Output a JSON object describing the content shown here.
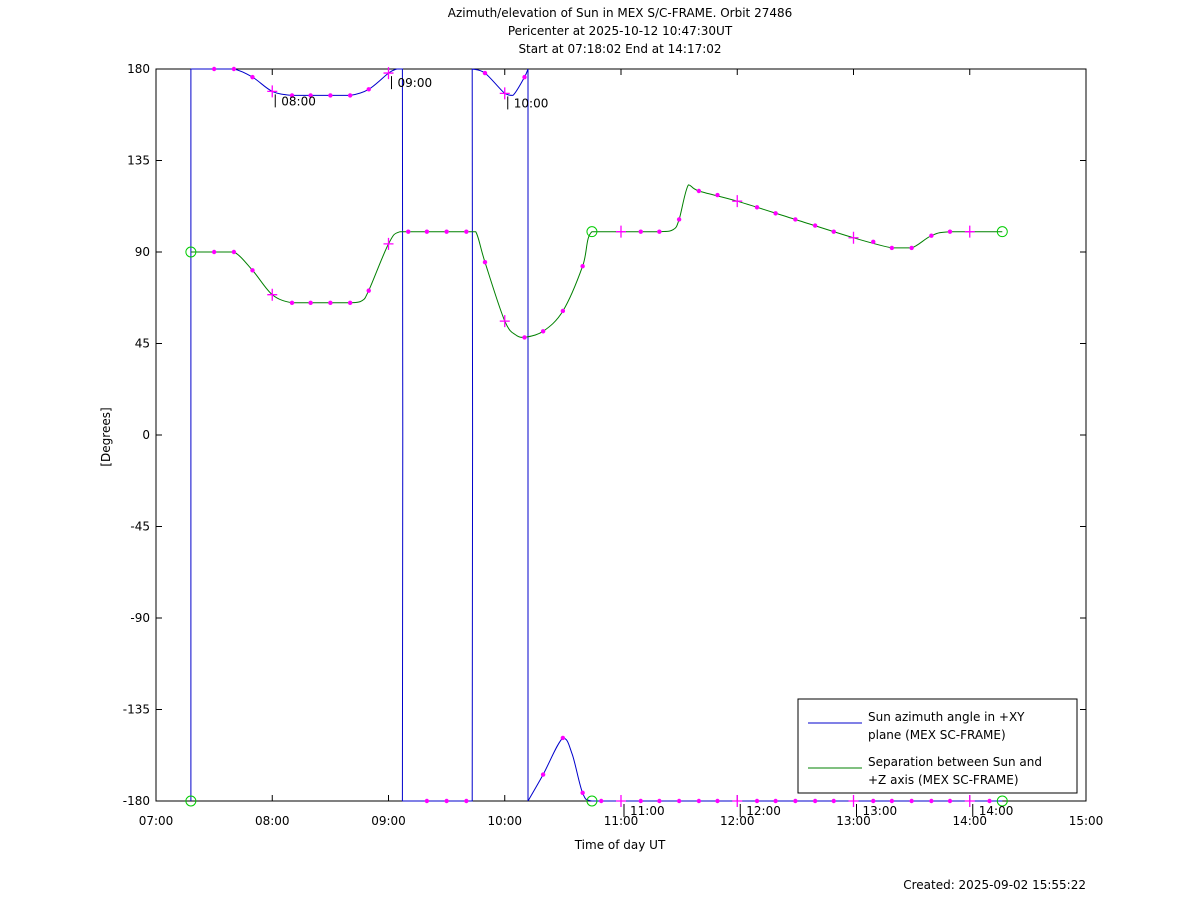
{
  "chart_data": {
    "type": "line",
    "title_lines": [
      "Azimuth/elevation of Sun in MEX S/C-FRAME.  Orbit 27486",
      "Pericenter at 2025-10-12 10:47:30UT",
      "Start at 07:18:02 End at 14:17:02"
    ],
    "xlabel": "Time of day UT",
    "ylabel": "[Degrees]",
    "x_unit": "hours UT",
    "xlim": [
      7,
      15
    ],
    "ylim": [
      -180,
      180
    ],
    "x_ticks": [
      {
        "v": 7,
        "label": "07:00"
      },
      {
        "v": 8,
        "label": "08:00"
      },
      {
        "v": 9,
        "label": "09:00"
      },
      {
        "v": 10,
        "label": "10:00"
      },
      {
        "v": 11,
        "label": "11:00"
      },
      {
        "v": 12,
        "label": "12:00"
      },
      {
        "v": 13,
        "label": "13:00"
      },
      {
        "v": 14,
        "label": "14:00"
      },
      {
        "v": 15,
        "label": "15:00"
      }
    ],
    "y_ticks": [
      {
        "v": 180,
        "label": "180"
      },
      {
        "v": 135,
        "label": "135"
      },
      {
        "v": 90,
        "label": "90"
      },
      {
        "v": 45,
        "label": "45"
      },
      {
        "v": 0,
        "label": "0"
      },
      {
        "v": -45,
        "label": "-45"
      },
      {
        "v": -90,
        "label": "-90"
      },
      {
        "v": -135,
        "label": "-135"
      },
      {
        "v": -180,
        "label": "-180"
      }
    ],
    "hour_annotations": [
      {
        "x": 8.0,
        "y": 169,
        "label": "08:00"
      },
      {
        "x": 9.0,
        "y": 178,
        "label": "09:00"
      },
      {
        "x": 10.0,
        "y": 168,
        "label": "10:00"
      },
      {
        "x": 11.0,
        "y": -180,
        "label": "11:00"
      },
      {
        "x": 12.0,
        "y": -180,
        "label": "12:00"
      },
      {
        "x": 13.0,
        "y": -180,
        "label": "13:00"
      },
      {
        "x": 14.0,
        "y": -180,
        "label": "14:00"
      }
    ],
    "series": [
      {
        "name": "Sun azimuth angle in +XY plane (MEX SC-FRAME)",
        "color": "#0000cc",
        "segments": [
          [
            [
              7.3,
              -180
            ],
            [
              7.3,
              180
            ]
          ],
          [
            [
              7.3,
              180
            ],
            [
              7.5,
              180
            ],
            [
              7.67,
              180
            ],
            [
              7.83,
              176
            ],
            [
              8.0,
              169
            ],
            [
              8.17,
              167
            ],
            [
              8.33,
              167
            ],
            [
              8.5,
              167
            ],
            [
              8.67,
              167
            ],
            [
              8.83,
              170
            ],
            [
              9.0,
              178
            ],
            [
              9.07,
              180
            ]
          ],
          [
            [
              9.07,
              180
            ],
            [
              9.12,
              180
            ],
            [
              9.12,
              -180
            ]
          ],
          [
            [
              9.12,
              -180
            ],
            [
              9.33,
              -180
            ],
            [
              9.5,
              -180
            ],
            [
              9.67,
              -180
            ],
            [
              9.72,
              -180
            ],
            [
              9.72,
              180
            ]
          ],
          [
            [
              9.72,
              180
            ],
            [
              9.83,
              178
            ],
            [
              10.0,
              168
            ],
            [
              10.07,
              167
            ],
            [
              10.17,
              176
            ],
            [
              10.2,
              180
            ]
          ],
          [
            [
              10.2,
              180
            ],
            [
              10.2,
              -180
            ]
          ],
          [
            [
              10.2,
              -180
            ],
            [
              10.33,
              -167
            ],
            [
              10.5,
              -149
            ],
            [
              10.58,
              -157
            ],
            [
              10.67,
              -176
            ],
            [
              10.75,
              -180
            ],
            [
              11.0,
              -180
            ],
            [
              12.0,
              -180
            ],
            [
              13.0,
              -180
            ],
            [
              14.0,
              -180
            ],
            [
              14.28,
              -180
            ]
          ]
        ],
        "markers_dot": [
          [
            7.5,
            180
          ],
          [
            7.67,
            180
          ],
          [
            7.83,
            176
          ],
          [
            8.17,
            167
          ],
          [
            8.33,
            167
          ],
          [
            8.5,
            167
          ],
          [
            8.67,
            167
          ],
          [
            8.83,
            170
          ],
          [
            9.33,
            -180
          ],
          [
            9.5,
            -180
          ],
          [
            9.67,
            -180
          ],
          [
            9.83,
            178
          ],
          [
            10.17,
            176
          ],
          [
            10.33,
            -167
          ],
          [
            10.5,
            -149
          ],
          [
            10.67,
            -176
          ],
          [
            10.83,
            -180
          ],
          [
            11.17,
            -180
          ],
          [
            11.33,
            -180
          ],
          [
            11.5,
            -180
          ],
          [
            11.67,
            -180
          ],
          [
            11.83,
            -180
          ],
          [
            12.17,
            -180
          ],
          [
            12.33,
            -180
          ],
          [
            12.5,
            -180
          ],
          [
            12.67,
            -180
          ],
          [
            12.83,
            -180
          ],
          [
            13.17,
            -180
          ],
          [
            13.33,
            -180
          ],
          [
            13.5,
            -180
          ],
          [
            13.67,
            -180
          ],
          [
            13.83,
            -180
          ],
          [
            14.17,
            -180
          ]
        ],
        "markers_plus": [
          [
            8.0,
            169
          ],
          [
            9.0,
            178
          ],
          [
            10.0,
            168
          ],
          [
            11.0,
            -180
          ],
          [
            12.0,
            -180
          ],
          [
            13.0,
            -180
          ],
          [
            14.0,
            -180
          ]
        ]
      },
      {
        "name": "Separation between Sun and +Z axis (MEX SC-FRAME)",
        "color": "#008000",
        "segments": [
          [
            [
              7.3,
              90
            ],
            [
              7.5,
              90
            ],
            [
              7.67,
              90
            ],
            [
              7.83,
              81
            ],
            [
              8.0,
              69
            ],
            [
              8.17,
              65
            ],
            [
              8.33,
              65
            ],
            [
              8.5,
              65
            ],
            [
              8.67,
              65
            ],
            [
              8.77,
              66
            ],
            [
              8.83,
              71
            ],
            [
              9.0,
              94
            ],
            [
              9.1,
              100
            ],
            [
              9.33,
              100
            ],
            [
              9.5,
              100
            ],
            [
              9.67,
              100
            ],
            [
              9.75,
              100
            ],
            [
              9.83,
              85
            ],
            [
              10.0,
              56
            ],
            [
              10.1,
              49
            ],
            [
              10.17,
              48
            ],
            [
              10.33,
              51
            ],
            [
              10.5,
              61
            ],
            [
              10.67,
              83
            ],
            [
              10.75,
              100
            ],
            [
              11.0,
              100
            ],
            [
              11.33,
              100
            ],
            [
              11.45,
              101
            ],
            [
              11.5,
              106
            ],
            [
              11.58,
              123
            ],
            [
              11.67,
              120
            ],
            [
              12.0,
              115
            ],
            [
              12.5,
              106
            ],
            [
              13.0,
              97
            ],
            [
              13.33,
              92
            ],
            [
              13.5,
              92
            ],
            [
              13.67,
              98
            ],
            [
              13.83,
              100
            ],
            [
              14.28,
              100
            ]
          ]
        ],
        "markers_dot": [
          [
            7.5,
            90
          ],
          [
            7.67,
            90
          ],
          [
            7.83,
            81
          ],
          [
            8.17,
            65
          ],
          [
            8.33,
            65
          ],
          [
            8.5,
            65
          ],
          [
            8.67,
            65
          ],
          [
            8.83,
            71
          ],
          [
            9.17,
            100
          ],
          [
            9.33,
            100
          ],
          [
            9.5,
            100
          ],
          [
            9.67,
            100
          ],
          [
            9.83,
            85
          ],
          [
            10.17,
            48
          ],
          [
            10.33,
            51
          ],
          [
            10.5,
            61
          ],
          [
            10.67,
            83
          ],
          [
            11.17,
            100
          ],
          [
            11.33,
            100
          ],
          [
            11.5,
            106
          ],
          [
            11.67,
            120
          ],
          [
            11.83,
            118
          ],
          [
            12.17,
            112
          ],
          [
            12.33,
            109
          ],
          [
            12.5,
            106
          ],
          [
            12.67,
            103
          ],
          [
            12.83,
            100
          ],
          [
            13.17,
            95
          ],
          [
            13.33,
            92
          ],
          [
            13.5,
            92
          ],
          [
            13.67,
            98
          ],
          [
            13.83,
            100
          ]
        ],
        "markers_plus": [
          [
            8.0,
            69
          ],
          [
            9.0,
            94
          ],
          [
            10.0,
            56
          ],
          [
            11.0,
            100
          ],
          [
            12.0,
            115
          ],
          [
            13.0,
            97
          ],
          [
            14.0,
            100
          ]
        ]
      }
    ],
    "markers_circle": {
      "color": "#00cc00",
      "points": [
        [
          7.3,
          90
        ],
        [
          7.3,
          -180
        ],
        [
          10.75,
          100
        ],
        [
          10.75,
          -180
        ],
        [
          14.28,
          100
        ],
        [
          14.28,
          -180
        ]
      ]
    },
    "marker_color": "#ff00ff",
    "legend": {
      "placement": "bottom-right",
      "entries": [
        {
          "lines": [
            "Sun azimuth angle in +XY",
            "plane (MEX SC-FRAME)"
          ],
          "color": "#0000cc"
        },
        {
          "lines": [
            "Separation between Sun and",
            "+Z axis (MEX SC-FRAME)"
          ],
          "color": "#008000"
        }
      ]
    },
    "footer": "Created: 2025-09-02 15:55:22",
    "grid": false
  }
}
